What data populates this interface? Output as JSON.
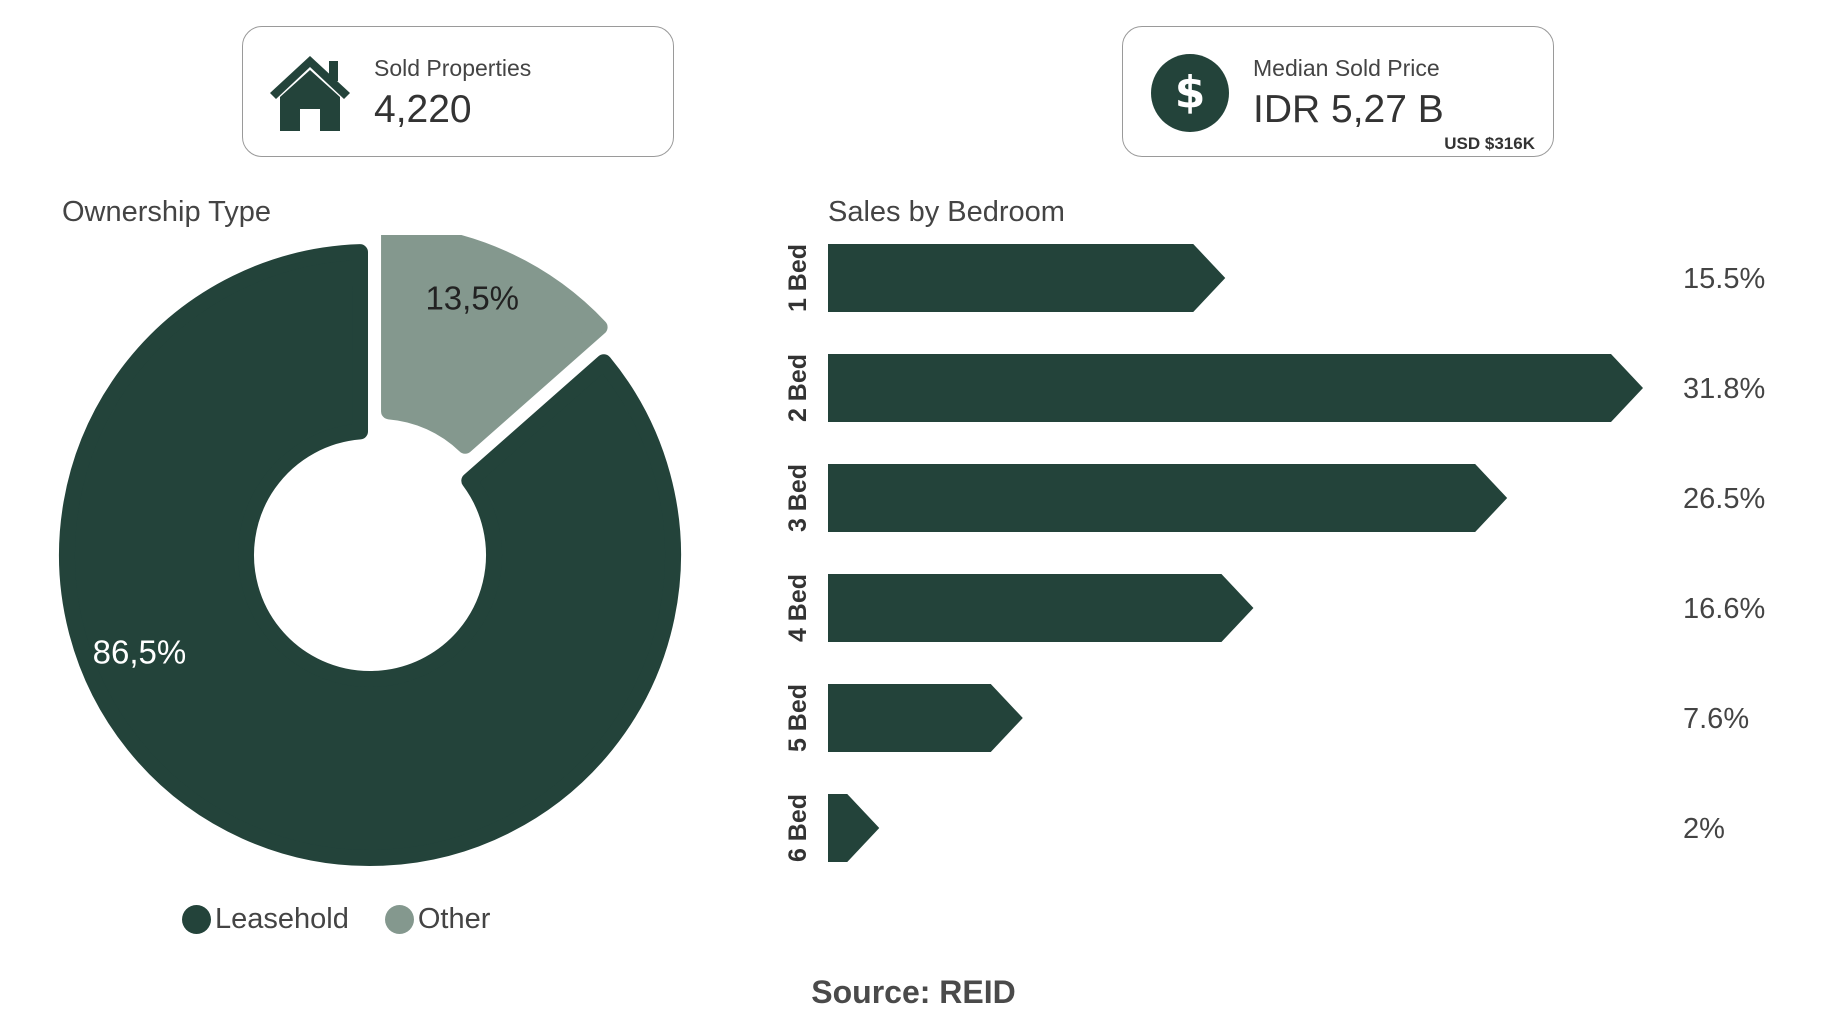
{
  "kpis": {
    "sold": {
      "label": "Sold Properties",
      "value": "4,220",
      "icon": "house-icon"
    },
    "price": {
      "label": "Median Sold Price",
      "value": "IDR 5,27 B",
      "sub": "USD $316K",
      "icon": "dollar-icon"
    }
  },
  "colors": {
    "primary": "#23433a",
    "secondary": "#84988e"
  },
  "chart_data": [
    {
      "type": "pie",
      "title": "Ownership Type",
      "slices": [
        {
          "name": "Other",
          "value": 13.5,
          "label": "13,5%"
        },
        {
          "name": "Leasehold",
          "value": 86.5,
          "label": "86,5%"
        }
      ],
      "legend": [
        "Leasehold",
        "Other"
      ],
      "legend_position": "bottom"
    },
    {
      "type": "bar",
      "orientation": "horizontal",
      "title": "Sales by Bedroom",
      "categories": [
        "1 Bed",
        "2 Bed",
        "3 Bed",
        "4 Bed",
        "5 Bed",
        "6 Bed"
      ],
      "values": [
        15.5,
        31.8,
        26.5,
        16.6,
        7.6,
        2
      ],
      "labels": [
        "15.5%",
        "31.8%",
        "26.5%",
        "16.6%",
        "7.6%",
        "2%"
      ]
    }
  ],
  "footer": {
    "source": "Source: REID"
  }
}
